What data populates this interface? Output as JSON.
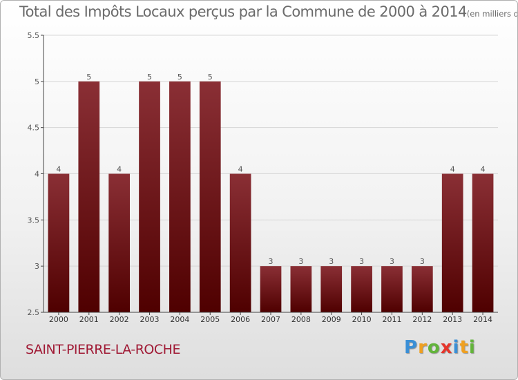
{
  "title": "Total des Impôts Locaux perçus par la Commune de 2000 à 2014",
  "title_unit": "(en milliers d'€)",
  "commune": "SAINT-PIERRE-LA-ROCHE",
  "logo": {
    "letters": [
      "P",
      "r",
      "o",
      "x",
      "i",
      "t",
      "i"
    ],
    "colors": [
      "#3a8fd6",
      "#f0a020",
      "#62b43a",
      "#e5352b",
      "#3a8fd6",
      "#f0a020",
      "#62b43a"
    ]
  },
  "colors": {
    "bar_top": "#8a2f35",
    "bar_bottom": "#4f0000",
    "axis": "#444444",
    "grid": "#d6d6d6",
    "text": "#555555",
    "commune": "#a01a35"
  },
  "chart_data": {
    "type": "bar",
    "title": "Total des Impôts Locaux perçus par la Commune de 2000 à 2014",
    "xlabel": "",
    "ylabel": "",
    "categories": [
      "2000",
      "2001",
      "2002",
      "2003",
      "2004",
      "2005",
      "2006",
      "2007",
      "2008",
      "2009",
      "2010",
      "2011",
      "2012",
      "2013",
      "2014"
    ],
    "values": [
      4,
      5,
      4,
      5,
      5,
      5,
      4,
      3,
      3,
      3,
      3,
      3,
      3,
      4,
      4
    ],
    "data_labels": [
      "4",
      "5",
      "4",
      "5",
      "5",
      "5",
      "4",
      "3",
      "3",
      "3",
      "3",
      "3",
      "3",
      "4",
      "4"
    ],
    "ylim": [
      2.5,
      5.5
    ],
    "yticks": [
      2.5,
      3,
      3.5,
      4,
      4.5,
      5,
      5.5
    ],
    "ytick_labels": [
      "2.5",
      "3",
      "3.5",
      "4",
      "4.5",
      "5",
      "5.5"
    ],
    "grid": true
  }
}
